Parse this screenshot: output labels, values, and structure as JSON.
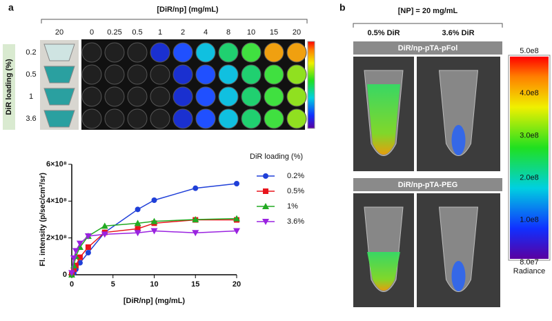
{
  "panel_a": {
    "label": "a",
    "plate": {
      "title": "[DiR/np] (mg/mL)",
      "tube_column": "20",
      "concentrations": [
        "0",
        "0.25",
        "0.5",
        "1",
        "2",
        "4",
        "8",
        "10",
        "15",
        "20"
      ],
      "loading_title": "DiR loading (%)",
      "loadings": [
        "0.2",
        "0.5",
        "1",
        "3.6"
      ]
    }
  },
  "chart_data": {
    "type": "line",
    "x_label": "[DiR/np] (mg/mL)",
    "y_label": "Fl. intensity (p/sec/cm²/sr)",
    "legend_title": "DiR loading (%)",
    "x": [
      0,
      0.25,
      0.5,
      1,
      2,
      4,
      8,
      10,
      15,
      20
    ],
    "series": [
      {
        "name": "0.2%",
        "color": "#1f3fd8",
        "marker": "circle",
        "values": [
          0,
          10000000,
          30000000,
          65000000,
          120000000,
          230000000,
          355000000,
          405000000,
          470000000,
          495000000
        ]
      },
      {
        "name": "0.5%",
        "color": "#e8141c",
        "marker": "square",
        "values": [
          0,
          30000000,
          50000000,
          95000000,
          150000000,
          230000000,
          250000000,
          280000000,
          298000000,
          298000000
        ]
      },
      {
        "name": "1%",
        "color": "#22aa22",
        "marker": "triangle",
        "values": [
          0,
          50000000,
          100000000,
          150000000,
          210000000,
          265000000,
          280000000,
          290000000,
          300000000,
          305000000
        ]
      },
      {
        "name": "3.6%",
        "color": "#9a22e0",
        "marker": "triangle-down",
        "values": [
          10000000,
          90000000,
          130000000,
          170000000,
          210000000,
          220000000,
          228000000,
          238000000,
          228000000,
          238000000
        ]
      }
    ],
    "xlim": [
      0,
      20
    ],
    "xticks": [
      0,
      5,
      10,
      15,
      20
    ],
    "ylim": [
      0,
      600000000
    ],
    "yticks": [
      0,
      {
        "value": 200000000,
        "label": "2×10⁸"
      },
      {
        "value": 400000000,
        "label": "4×10⁸"
      },
      {
        "value": 600000000,
        "label": "6×10⁸"
      }
    ]
  },
  "panel_b": {
    "label": "b",
    "title": "[NP] = 20 mg/mL",
    "columns": [
      "0.5% DiR",
      "3.6% DiR"
    ],
    "rows": [
      "DiR/np-pTA-pFol",
      "DiR/np-pTA-PEG"
    ],
    "colorbar": {
      "labels": [
        "5.0e8",
        "4.0e8",
        "3.0e8",
        "2.0e8",
        "1.0e8",
        "8.0e7"
      ],
      "title": "Radiance"
    }
  }
}
